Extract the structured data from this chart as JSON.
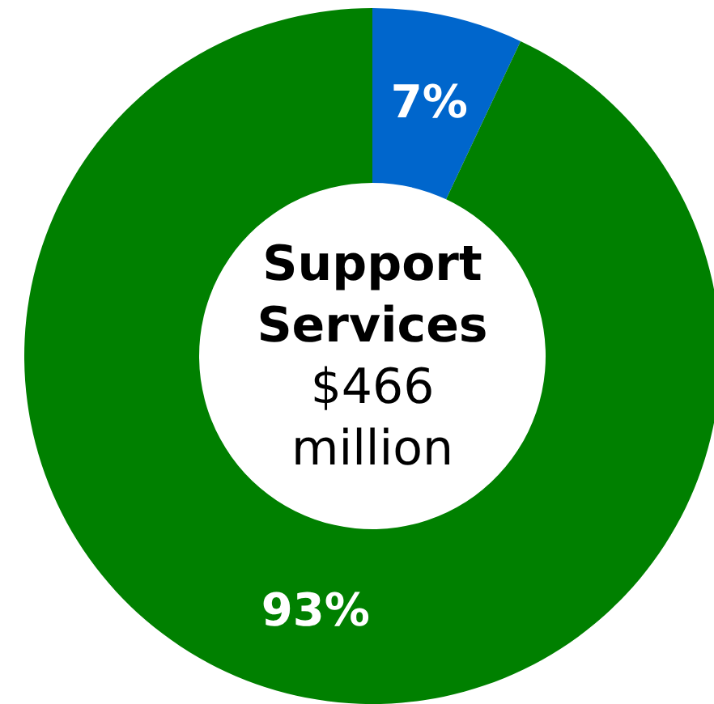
{
  "chart_data": {
    "type": "donut",
    "title": "Support Services",
    "subtitle": "$466 million",
    "categories": [
      null,
      null
    ],
    "values": [
      7,
      93
    ],
    "colors": [
      "#0066cc",
      "#008000"
    ],
    "value_labels": [
      "7%",
      "93%"
    ]
  }
}
